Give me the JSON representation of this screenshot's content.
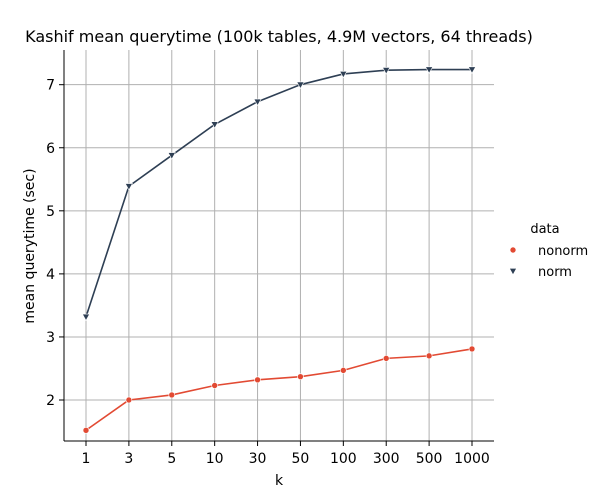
{
  "chart_data": {
    "type": "line",
    "title": "Kashif mean querytime (100k tables, 4.9M vectors, 64 threads)",
    "xlabel": "k",
    "ylabel": "mean querytime (sec)",
    "categories": [
      "1",
      "3",
      "5",
      "10",
      "30",
      "50",
      "100",
      "300",
      "500",
      "1000"
    ],
    "ylim": [
      1.35,
      7.55
    ],
    "yticks": [
      2,
      3,
      4,
      5,
      6,
      7
    ],
    "grid": true,
    "legend": {
      "title": "data",
      "placement": "right"
    },
    "series": [
      {
        "name": "nonorm",
        "color": "#e24a33",
        "marker": "circle",
        "values": [
          1.52,
          2.0,
          2.08,
          2.23,
          2.32,
          2.37,
          2.47,
          2.66,
          2.7,
          2.81
        ]
      },
      {
        "name": "norm",
        "color": "#2e3f54",
        "marker": "triangle-down",
        "values": [
          3.32,
          5.39,
          5.88,
          6.37,
          6.73,
          7.0,
          7.17,
          7.23,
          7.24,
          7.24
        ]
      }
    ]
  }
}
